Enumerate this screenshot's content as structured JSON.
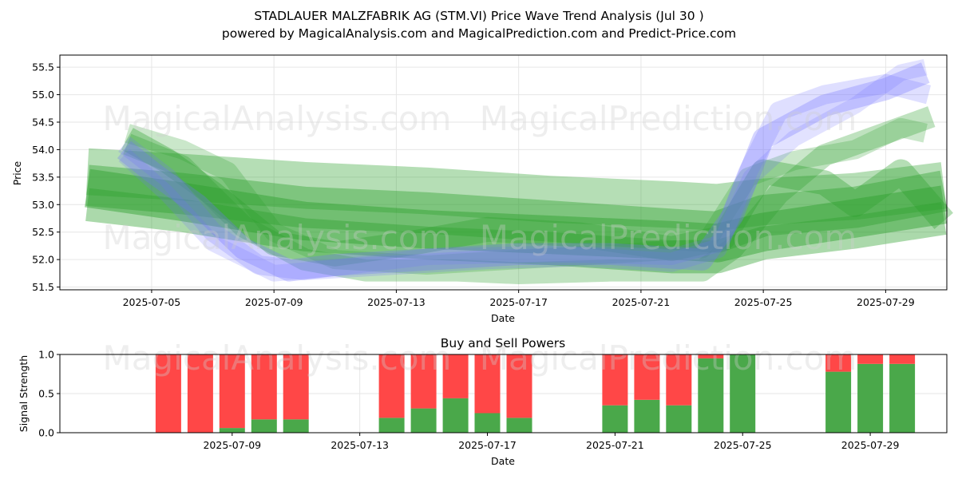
{
  "header": {
    "title": "STADLAUER MALZFABRIK AG (STM.VI) Price Wave Trend Analysis (Jul 30 )",
    "subtitle": "powered by MagicalAnalysis.com and MagicalPrediction.com and Predict-Price.com"
  },
  "watermarks": [
    "MagicalAnalysis.com",
    "MagicalPrediction.com"
  ],
  "colors": {
    "green_band": "#2ca02c",
    "blue_band": "#6f6fff",
    "buy_bar": "#4aa84a",
    "sell_bar": "#ff4747"
  },
  "chart_data": [
    {
      "type": "area",
      "title": "",
      "xlabel": "Date",
      "ylabel": "Price",
      "x_range": [
        "2025-07-02",
        "2025-07-31"
      ],
      "ylim": [
        51.45,
        55.72
      ],
      "y_ticks": [
        51.5,
        52.0,
        52.5,
        53.0,
        53.5,
        54.0,
        54.5,
        55.0,
        55.5
      ],
      "x_ticks": [
        "2025-07-05",
        "2025-07-09",
        "2025-07-13",
        "2025-07-17",
        "2025-07-21",
        "2025-07-25",
        "2025-07-29"
      ],
      "grid": true,
      "series": [
        {
          "color": "green",
          "width": 0.85,
          "alpha": 0.35,
          "points": [
            [
              "2025-07-02.9",
              53.6
            ],
            [
              "2025-07-06",
              53.5
            ],
            [
              "2025-07-10",
              53.35
            ],
            [
              "2025-07-14",
              53.25
            ],
            [
              "2025-07-18",
              53.1
            ],
            [
              "2025-07-22",
              53.0
            ],
            [
              "2025-07-23.5",
              52.95
            ],
            [
              "2025-07-25",
              53.05
            ],
            [
              "2025-07-28",
              53.15
            ],
            [
              "2025-07-30.9",
              53.35
            ]
          ]
        },
        {
          "color": "green",
          "width": 0.75,
          "alpha": 0.4,
          "points": [
            [
              "2025-07-02.9",
              53.35
            ],
            [
              "2025-07-06",
              53.2
            ],
            [
              "2025-07-10",
              52.95
            ],
            [
              "2025-07-14",
              52.85
            ],
            [
              "2025-07-18",
              52.7
            ],
            [
              "2025-07-22",
              52.55
            ],
            [
              "2025-07-23.5",
              52.5
            ],
            [
              "2025-07-25",
              52.8
            ],
            [
              "2025-07-28",
              52.95
            ],
            [
              "2025-07-30.9",
              53.25
            ]
          ]
        },
        {
          "color": "green",
          "width": 0.7,
          "alpha": 0.45,
          "points": [
            [
              "2025-07-02.9",
              53.3
            ],
            [
              "2025-07-06",
              53.05
            ],
            [
              "2025-07-10",
              52.7
            ],
            [
              "2025-07-14",
              52.55
            ],
            [
              "2025-07-18",
              52.45
            ],
            [
              "2025-07-22",
              52.35
            ],
            [
              "2025-07-23.5",
              52.3
            ],
            [
              "2025-07-25",
              52.5
            ],
            [
              "2025-07-28",
              52.75
            ],
            [
              "2025-07-30.9",
              53.0
            ]
          ]
        },
        {
          "color": "green",
          "width": 0.6,
          "alpha": 0.4,
          "points": [
            [
              "2025-07-02.9",
              53.0
            ],
            [
              "2025-07-06",
              52.8
            ],
            [
              "2025-07-10",
              52.45
            ],
            [
              "2025-07-14",
              52.3
            ],
            [
              "2025-07-18",
              52.2
            ],
            [
              "2025-07-22",
              52.05
            ],
            [
              "2025-07-23.5",
              52.05
            ],
            [
              "2025-07-25",
              52.3
            ],
            [
              "2025-07-28",
              52.5
            ],
            [
              "2025-07-30.9",
              52.75
            ]
          ]
        },
        {
          "color": "green",
          "width": 0.45,
          "alpha": 0.35,
          "points": [
            [
              "2025-07-04.2",
              54.2
            ],
            [
              "2025-07-05.5",
              53.8
            ],
            [
              "2025-07-07",
              53.2
            ],
            [
              "2025-07-09",
              52.3
            ],
            [
              "2025-07-11",
              52.1
            ],
            [
              "2025-07-13.5",
              52.3
            ],
            [
              "2025-07-16",
              52.55
            ],
            [
              "2025-07-19",
              52.45
            ],
            [
              "2025-07-22",
              52.2
            ],
            [
              "2025-07-23.7",
              52.4
            ],
            [
              "2025-07-25",
              53.6
            ],
            [
              "2025-07-27",
              53.4
            ],
            [
              "2025-07-28",
              53.0
            ],
            [
              "2025-07-29.5",
              53.6
            ],
            [
              "2025-07-30.9",
              52.7
            ]
          ]
        },
        {
          "color": "green",
          "width": 0.4,
          "alpha": 0.3,
          "points": [
            [
              "2025-07-04.2",
              54.1
            ],
            [
              "2025-07-06",
              53.7
            ],
            [
              "2025-07-08",
              52.6
            ],
            [
              "2025-07-10",
              52.0
            ],
            [
              "2025-07-12",
              51.8
            ],
            [
              "2025-07-15",
              51.8
            ],
            [
              "2025-07-17",
              51.75
            ],
            [
              "2025-07-20",
              51.8
            ],
            [
              "2025-07-23",
              51.8
            ],
            [
              "2025-07-24",
              52.2
            ],
            [
              "2025-07-25.5",
              53.2
            ],
            [
              "2025-07-27",
              53.9
            ],
            [
              "2025-07-29",
              54.3
            ],
            [
              "2025-07-30.5",
              54.6
            ]
          ]
        },
        {
          "color": "green",
          "width": 0.35,
          "alpha": 0.25,
          "points": [
            [
              "2025-07-04.2",
              54.3
            ],
            [
              "2025-07-06",
              54.0
            ],
            [
              "2025-07-07.5",
              53.6
            ],
            [
              "2025-07-09",
              52.5
            ],
            [
              "2025-07-11",
              52.0
            ],
            [
              "2025-07-14",
              51.9
            ],
            [
              "2025-07-17",
              52.0
            ],
            [
              "2025-07-20",
              52.1
            ],
            [
              "2025-07-23",
              52.2
            ],
            [
              "2025-07-24.5",
              53.5
            ],
            [
              "2025-07-26",
              53.8
            ],
            [
              "2025-07-28",
              54.0
            ],
            [
              "2025-07-29.5",
              54.4
            ],
            [
              "2025-07-30.3",
              54.3
            ]
          ]
        },
        {
          "color": "blue",
          "width": 0.4,
          "alpha": 0.3,
          "points": [
            [
              "2025-07-04.1",
              54.0
            ],
            [
              "2025-07-05",
              53.6
            ],
            [
              "2025-07-06.5",
              53.0
            ],
            [
              "2025-07-08",
              52.2
            ],
            [
              "2025-07-09.5",
              51.8
            ],
            [
              "2025-07-11",
              51.9
            ],
            [
              "2025-07-14",
              52.0
            ],
            [
              "2025-07-17",
              52.1
            ],
            [
              "2025-07-20",
              52.1
            ],
            [
              "2025-07-23",
              52.0
            ],
            [
              "2025-07-24",
              52.8
            ],
            [
              "2025-07-25",
              54.2
            ],
            [
              "2025-07-27",
              54.8
            ],
            [
              "2025-07-29",
              55.1
            ],
            [
              "2025-07-30.3",
              55.4
            ]
          ]
        },
        {
          "color": "blue",
          "width": 0.35,
          "alpha": 0.22,
          "points": [
            [
              "2025-07-04.1",
              54.1
            ],
            [
              "2025-07-05.5",
              53.5
            ],
            [
              "2025-07-07",
              52.5
            ],
            [
              "2025-07-08.5",
              51.9
            ],
            [
              "2025-07-10",
              51.8
            ],
            [
              "2025-07-13",
              51.9
            ],
            [
              "2025-07-16",
              52.0
            ],
            [
              "2025-07-19",
              52.05
            ],
            [
              "2025-07-22",
              51.95
            ],
            [
              "2025-07-23.5",
              52.2
            ],
            [
              "2025-07-24.5",
              53.6
            ],
            [
              "2025-07-25.5",
              54.7
            ],
            [
              "2025-07-27",
              55.0
            ],
            [
              "2025-07-29",
              55.2
            ],
            [
              "2025-07-30.4",
              55.0
            ]
          ]
        },
        {
          "color": "blue",
          "width": 0.3,
          "alpha": 0.2,
          "points": [
            [
              "2025-07-04.1",
              53.9
            ],
            [
              "2025-07-05.5",
              53.2
            ],
            [
              "2025-07-07",
              52.3
            ],
            [
              "2025-07-09",
              51.75
            ],
            [
              "2025-07-11",
              51.85
            ],
            [
              "2025-07-14",
              52.05
            ],
            [
              "2025-07-18",
              52.1
            ],
            [
              "2025-07-22",
              52.05
            ],
            [
              "2025-07-23.6",
              52.3
            ],
            [
              "2025-07-24.6",
              53.5
            ],
            [
              "2025-07-26",
              54.2
            ],
            [
              "2025-07-28",
              54.8
            ],
            [
              "2025-07-29.5",
              55.4
            ],
            [
              "2025-07-30.3",
              55.5
            ]
          ]
        }
      ]
    },
    {
      "type": "bar",
      "title": "Buy and Sell Powers",
      "xlabel": "Date",
      "ylabel": "Signal Strength",
      "ylim": [
        0,
        1.0
      ],
      "y_ticks": [
        0.0,
        0.5,
        1.0
      ],
      "x_ticks": [
        "2025-07-09",
        "2025-07-13",
        "2025-07-17",
        "2025-07-21",
        "2025-07-25",
        "2025-07-29"
      ],
      "grid": true,
      "categories": [
        "2025-07-07",
        "2025-07-08",
        "2025-07-09",
        "2025-07-10",
        "2025-07-11",
        "2025-07-14",
        "2025-07-15",
        "2025-07-16",
        "2025-07-17",
        "2025-07-18",
        "2025-07-21",
        "2025-07-22",
        "2025-07-23",
        "2025-07-24",
        "2025-07-25",
        "2025-07-28",
        "2025-07-29",
        "2025-07-30"
      ],
      "series": [
        {
          "color": "green",
          "values": [
            0.0,
            0.0,
            0.06,
            0.17,
            0.17,
            0.19,
            0.31,
            0.44,
            0.25,
            0.19,
            0.35,
            0.42,
            0.35,
            0.95,
            1.0,
            0.78,
            0.88,
            0.88
          ]
        },
        {
          "color": "red",
          "values": [
            1.0,
            1.0,
            0.94,
            0.83,
            0.83,
            0.81,
            0.69,
            0.56,
            0.75,
            0.81,
            0.65,
            0.58,
            0.65,
            0.05,
            0.0,
            0.22,
            0.12,
            0.12
          ]
        }
      ]
    }
  ]
}
